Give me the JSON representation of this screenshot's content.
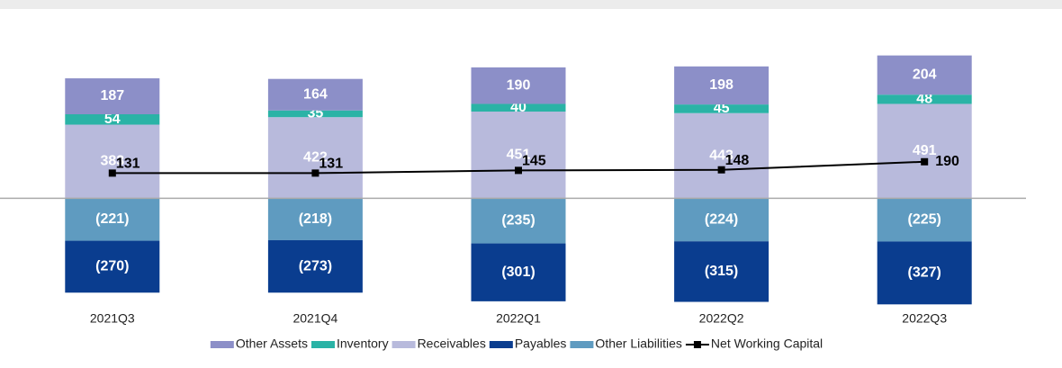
{
  "chart_data": {
    "type": "bar",
    "categories": [
      "2021Q3",
      "2021Q4",
      "2022Q1",
      "2022Q2",
      "2022Q3"
    ],
    "ylim": [
      -560,
      760
    ],
    "series": [
      {
        "name": "Other Assets",
        "type": "bar",
        "color": "#8c8fc8",
        "values": [
          187,
          164,
          190,
          198,
          204
        ]
      },
      {
        "name": "Inventory",
        "type": "bar",
        "color": "#2ab3a6",
        "values": [
          54,
          35,
          40,
          45,
          48
        ]
      },
      {
        "name": "Receivables",
        "type": "bar",
        "color": "#b8badc",
        "values": [
          383,
          422,
          451,
          443,
          491
        ]
      },
      {
        "name": "Payables",
        "type": "bar",
        "color": "#0a3d8f",
        "values": [
          -270,
          -273,
          -301,
          -315,
          -327
        ],
        "value_labels": [
          "(270)",
          "(273)",
          "(301)",
          "(315)",
          "(327)"
        ]
      },
      {
        "name": "Other Liabilities",
        "type": "bar",
        "color": "#5f9bc0",
        "values": [
          -221,
          -218,
          -235,
          -224,
          -225
        ],
        "value_labels": [
          "(221)",
          "(218)",
          "(235)",
          "(224)",
          "(225)"
        ]
      },
      {
        "name": "Net Working Capital",
        "type": "line",
        "color": "#000000",
        "values": [
          131,
          131,
          145,
          148,
          190
        ]
      }
    ]
  }
}
